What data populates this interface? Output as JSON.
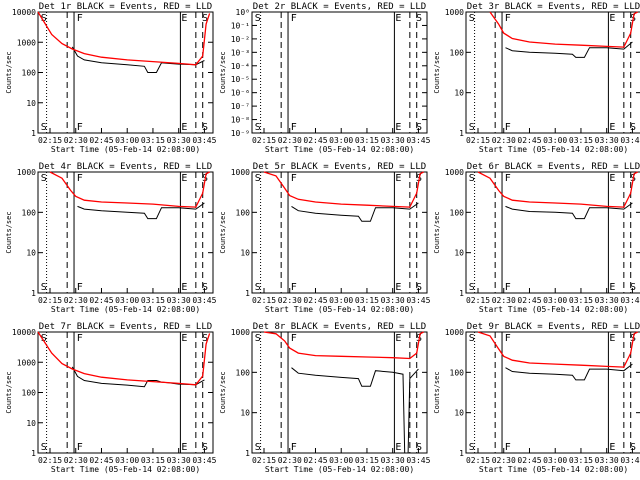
{
  "colors": {
    "events": "#000000",
    "lld": "#ff0000",
    "background": "#ffffff"
  },
  "chart_data": [
    {
      "type": "line",
      "title": "Det 1r BLACK = Events, RED = LLD",
      "xlabel": "Start Time (05-Feb-14 02:08:00)",
      "ylabel": "Counts/sec",
      "x_ticks": [
        "02:15",
        "02:30",
        "02:45",
        "03:00",
        "03:15",
        "03:30",
        "03:45"
      ],
      "y_ticks": [
        "1",
        "10",
        "100",
        "1000",
        "10000"
      ],
      "ylim": [
        1,
        10000
      ],
      "yscale": "log",
      "xlim": [
        "02:08",
        "03:50"
      ],
      "markers": [
        "S",
        "F",
        "E",
        "S"
      ],
      "series": [
        {
          "name": "Events",
          "x": [
            "02:08",
            "02:16",
            "02:22",
            "02:28",
            "02:31",
            "02:35",
            "02:45",
            "03:00",
            "03:10",
            "03:12",
            "03:17",
            "03:20",
            "03:24",
            "03:30",
            "03:40",
            "03:45",
            "03:47"
          ],
          "y": [
            null,
            null,
            null,
            700,
            350,
            260,
            210,
            180,
            160,
            100,
            100,
            210,
            200,
            190,
            180,
            250,
            null
          ]
        },
        {
          "name": "LLD",
          "x": [
            "02:08",
            "02:16",
            "02:22",
            "02:28",
            "02:35",
            "02:45",
            "03:00",
            "03:15",
            "03:30",
            "03:40",
            "03:44",
            "03:46",
            "03:48"
          ],
          "y": [
            10000,
            1800,
            900,
            600,
            420,
            320,
            260,
            230,
            200,
            180,
            350,
            4000,
            9000
          ]
        }
      ]
    },
    {
      "type": "line",
      "title": "Det 2r BLACK = Events, RED = LLD",
      "xlabel": "Start Time (05-Feb-14 02:08:00)",
      "ylabel": "Counts/sec",
      "x_ticks": [
        "02:15",
        "02:30",
        "02:45",
        "03:00",
        "03:15",
        "03:30",
        "03:45"
      ],
      "y_ticks": [
        "10⁻⁹",
        "10⁻⁸",
        "10⁻⁷",
        "10⁻⁶",
        "10⁻⁵",
        "10⁻⁴",
        "10⁻³",
        "10⁻²",
        "10⁻¹",
        "10⁰"
      ],
      "ylim": [
        1e-09,
        1
      ],
      "yscale": "log",
      "xlim": [
        "02:08",
        "03:50"
      ],
      "markers": [
        "S",
        "F",
        "E",
        "S"
      ],
      "series": []
    },
    {
      "type": "line",
      "title": "Det 3r BLACK = Events, RED = LLD",
      "xlabel": "Start Time (05-Feb-14 02:08:00)",
      "ylabel": "Counts/sec",
      "x_ticks": [
        "02:15",
        "02:30",
        "02:45",
        "03:00",
        "03:15",
        "03:30",
        "03:45"
      ],
      "y_ticks": [
        "1",
        "10",
        "100",
        "1000"
      ],
      "ylim": [
        1,
        1000
      ],
      "yscale": "log",
      "xlim": [
        "02:08",
        "03:50"
      ],
      "markers": [
        "S",
        "F",
        "E",
        "S"
      ],
      "series": [
        {
          "name": "Events",
          "x": [
            "02:22",
            "02:28",
            "02:31",
            "02:35",
            "02:45",
            "03:00",
            "03:10",
            "03:12",
            "03:17",
            "03:20",
            "03:30",
            "03:40",
            "03:45",
            "03:47"
          ],
          "y": [
            null,
            null,
            130,
            110,
            100,
            95,
            90,
            75,
            75,
            130,
            130,
            120,
            180,
            null
          ]
        },
        {
          "name": "LLD",
          "x": [
            "02:22",
            "02:27",
            "02:30",
            "02:35",
            "02:45",
            "03:00",
            "03:15",
            "03:30",
            "03:40",
            "03:44",
            "03:46",
            "03:48"
          ],
          "y": [
            1000,
            500,
            300,
            220,
            180,
            160,
            150,
            140,
            135,
            300,
            900,
            1000
          ]
        }
      ]
    },
    {
      "type": "line",
      "title": "Det 4r BLACK = Events, RED = LLD",
      "xlabel": "Start Time (05-Feb-14 02:08:00)",
      "ylabel": "Counts/sec",
      "x_ticks": [
        "02:15",
        "02:30",
        "02:45",
        "03:00",
        "03:15",
        "03:30",
        "03:45"
      ],
      "y_ticks": [
        "1",
        "10",
        "100",
        "1000"
      ],
      "ylim": [
        1,
        1000
      ],
      "yscale": "log",
      "xlim": [
        "02:08",
        "03:50"
      ],
      "markers": [
        "S",
        "F",
        "E",
        "S"
      ],
      "series": [
        {
          "name": "Events",
          "x": [
            "02:22",
            "02:28",
            "02:31",
            "02:35",
            "02:45",
            "03:00",
            "03:10",
            "03:12",
            "03:17",
            "03:20",
            "03:30",
            "03:40",
            "03:45",
            "03:47"
          ],
          "y": [
            null,
            null,
            140,
            120,
            110,
            100,
            95,
            70,
            70,
            130,
            130,
            120,
            170,
            null
          ]
        },
        {
          "name": "LLD",
          "x": [
            "02:15",
            "02:22",
            "02:27",
            "02:30",
            "02:35",
            "02:45",
            "03:00",
            "03:15",
            "03:30",
            "03:40",
            "03:44",
            "03:46",
            "03:48"
          ],
          "y": [
            1000,
            700,
            350,
            250,
            200,
            180,
            170,
            160,
            140,
            135,
            300,
            900,
            1000
          ]
        }
      ]
    },
    {
      "type": "line",
      "title": "Det 5r BLACK = Events, RED = LLD",
      "xlabel": "Start Time (05-Feb-14 02:08:00)",
      "ylabel": "Counts/sec",
      "x_ticks": [
        "02:15",
        "02:30",
        "02:45",
        "03:00",
        "03:15",
        "03:30",
        "03:45"
      ],
      "y_ticks": [
        "1",
        "10",
        "100",
        "1000"
      ],
      "ylim": [
        1,
        1000
      ],
      "yscale": "log",
      "xlim": [
        "02:08",
        "03:50"
      ],
      "markers": [
        "S",
        "F",
        "E",
        "S"
      ],
      "series": [
        {
          "name": "Events",
          "x": [
            "02:22",
            "02:28",
            "02:31",
            "02:35",
            "02:45",
            "03:00",
            "03:10",
            "03:12",
            "03:17",
            "03:20",
            "03:30",
            "03:40",
            "03:45",
            "03:47"
          ],
          "y": [
            null,
            null,
            140,
            110,
            95,
            85,
            80,
            60,
            60,
            130,
            130,
            120,
            170,
            null
          ]
        },
        {
          "name": "LLD",
          "x": [
            "02:15",
            "02:22",
            "02:27",
            "02:30",
            "02:35",
            "02:45",
            "03:00",
            "03:15",
            "03:30",
            "03:40",
            "03:44",
            "03:46",
            "03:48"
          ],
          "y": [
            1000,
            800,
            400,
            260,
            210,
            180,
            160,
            150,
            140,
            135,
            300,
            900,
            1000
          ]
        }
      ]
    },
    {
      "type": "line",
      "title": "Det 6r BLACK = Events, RED = LLD",
      "xlabel": "Start Time (05-Feb-14 02:08:00)",
      "ylabel": "Counts/sec",
      "x_ticks": [
        "02:15",
        "02:30",
        "02:45",
        "03:00",
        "03:15",
        "03:30",
        "03:45"
      ],
      "y_ticks": [
        "1",
        "10",
        "100",
        "1000"
      ],
      "ylim": [
        1,
        1000
      ],
      "yscale": "log",
      "xlim": [
        "02:08",
        "03:50"
      ],
      "markers": [
        "S",
        "F",
        "E",
        "S"
      ],
      "series": [
        {
          "name": "Events",
          "x": [
            "02:22",
            "02:28",
            "02:31",
            "02:35",
            "02:45",
            "03:00",
            "03:10",
            "03:12",
            "03:17",
            "03:20",
            "03:30",
            "03:40",
            "03:45",
            "03:47"
          ],
          "y": [
            null,
            null,
            140,
            120,
            105,
            100,
            95,
            70,
            70,
            130,
            130,
            120,
            170,
            null
          ]
        },
        {
          "name": "LLD",
          "x": [
            "02:15",
            "02:22",
            "02:27",
            "02:30",
            "02:35",
            "02:45",
            "03:00",
            "03:15",
            "03:30",
            "03:40",
            "03:44",
            "03:46",
            "03:48"
          ],
          "y": [
            1000,
            700,
            350,
            250,
            200,
            180,
            170,
            160,
            140,
            135,
            300,
            900,
            1000
          ]
        }
      ]
    },
    {
      "type": "line",
      "title": "Det 7r BLACK = Events, RED = LLD",
      "xlabel": "Start Time (05-Feb-14 02:08:00)",
      "ylabel": "Counts/sec",
      "x_ticks": [
        "02:15",
        "02:30",
        "02:45",
        "03:00",
        "03:15",
        "03:30",
        "03:45"
      ],
      "y_ticks": [
        "1",
        "10",
        "100",
        "1000",
        "10000"
      ],
      "ylim": [
        1,
        10000
      ],
      "yscale": "log",
      "xlim": [
        "02:08",
        "03:50"
      ],
      "markers": [
        "S",
        "F",
        "E",
        "S"
      ],
      "series": [
        {
          "name": "Events",
          "x": [
            "02:08",
            "02:16",
            "02:22",
            "02:28",
            "02:31",
            "02:35",
            "02:45",
            "03:00",
            "03:10",
            "03:12",
            "03:17",
            "03:20",
            "03:24",
            "03:30",
            "03:40",
            "03:45",
            "03:47"
          ],
          "y": [
            null,
            null,
            null,
            700,
            340,
            250,
            200,
            175,
            155,
            250,
            250,
            220,
            210,
            190,
            180,
            260,
            null
          ]
        },
        {
          "name": "LLD",
          "x": [
            "02:08",
            "02:16",
            "02:22",
            "02:28",
            "02:35",
            "02:45",
            "03:00",
            "03:15",
            "03:30",
            "03:40",
            "03:44",
            "03:46",
            "03:48"
          ],
          "y": [
            10000,
            2000,
            900,
            600,
            420,
            320,
            260,
            230,
            200,
            180,
            350,
            4000,
            9000
          ]
        }
      ]
    },
    {
      "type": "line",
      "title": "Det 8r BLACK = Events, RED = LLD",
      "xlabel": "Start Time (05-Feb-14 02:08:00)",
      "ylabel": "Counts/sec",
      "x_ticks": [
        "02:15",
        "02:30",
        "02:45",
        "03:00",
        "03:15",
        "03:30",
        "03:45"
      ],
      "y_ticks": [
        "1",
        "10",
        "100",
        "1000"
      ],
      "ylim": [
        1,
        1000
      ],
      "yscale": "log",
      "xlim": [
        "02:08",
        "03:50"
      ],
      "markers": [
        "S",
        "F",
        "E",
        "S"
      ],
      "series": [
        {
          "name": "Events",
          "x": [
            "02:22",
            "02:28",
            "02:31",
            "02:35",
            "02:45",
            "03:00",
            "03:10",
            "03:12",
            "03:17",
            "03:20",
            "03:30",
            "03:36",
            "03:37",
            "03:39",
            "03:40",
            "03:45",
            "03:47"
          ],
          "y": [
            null,
            null,
            130,
            95,
            85,
            75,
            70,
            45,
            45,
            110,
            100,
            90,
            1,
            1,
            70,
            120,
            null
          ]
        },
        {
          "name": "LLD",
          "x": [
            "02:15",
            "02:22",
            "02:27",
            "02:30",
            "02:35",
            "02:45",
            "03:00",
            "03:15",
            "03:30",
            "03:40",
            "03:44",
            "03:46",
            "03:48"
          ],
          "y": [
            1000,
            900,
            600,
            400,
            300,
            260,
            250,
            240,
            230,
            220,
            300,
            900,
            1000
          ]
        }
      ]
    },
    {
      "type": "line",
      "title": "Det 9r BLACK = Events, RED = LLD",
      "xlabel": "Start Time (05-Feb-14 02:08:00)",
      "ylabel": "Counts/sec",
      "x_ticks": [
        "02:15",
        "02:30",
        "02:45",
        "03:00",
        "03:15",
        "03:30",
        "03:45"
      ],
      "y_ticks": [
        "1",
        "10",
        "100",
        "1000"
      ],
      "ylim": [
        1,
        1000
      ],
      "yscale": "log",
      "xlim": [
        "02:08",
        "03:50"
      ],
      "markers": [
        "S",
        "F",
        "E",
        "S"
      ],
      "series": [
        {
          "name": "Events",
          "x": [
            "02:22",
            "02:28",
            "02:31",
            "02:35",
            "02:45",
            "03:00",
            "03:10",
            "03:12",
            "03:17",
            "03:20",
            "03:30",
            "03:40",
            "03:45",
            "03:47"
          ],
          "y": [
            null,
            null,
            130,
            105,
            95,
            90,
            85,
            65,
            65,
            120,
            120,
            110,
            160,
            null
          ]
        },
        {
          "name": "LLD",
          "x": [
            "02:15",
            "02:22",
            "02:27",
            "02:30",
            "02:35",
            "02:45",
            "03:00",
            "03:15",
            "03:30",
            "03:40",
            "03:44",
            "03:46",
            "03:48"
          ],
          "y": [
            1000,
            800,
            380,
            250,
            200,
            170,
            160,
            150,
            140,
            135,
            300,
            900,
            1000
          ]
        }
      ]
    }
  ]
}
